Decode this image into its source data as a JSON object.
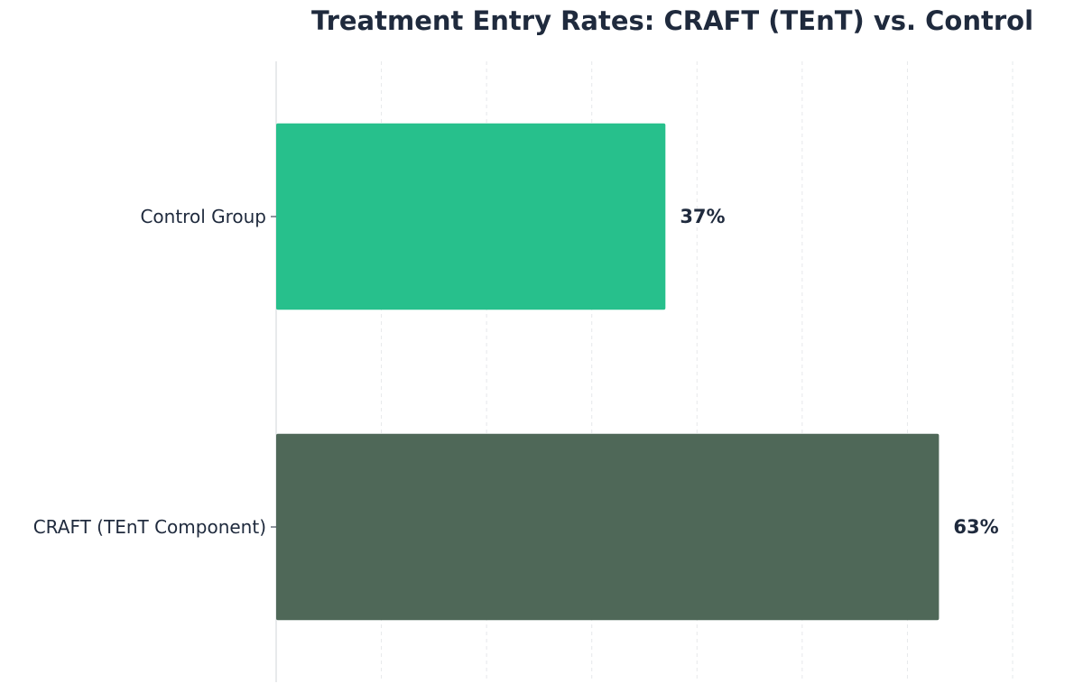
{
  "chart_data": {
    "type": "bar",
    "orientation": "horizontal",
    "title": "Treatment Entry Rates: CRAFT (TEnT) vs. Control",
    "xlabel": "",
    "ylabel": "",
    "xlim": [
      0,
      70
    ],
    "grid": true,
    "categories": [
      "Control Group",
      "CRAFT (TEnT Component)"
    ],
    "values": [
      37,
      63
    ],
    "value_labels": [
      "37%",
      "63%"
    ],
    "colors": [
      "#27c08c",
      "#4f6858"
    ],
    "text_color": "#1f2a3d"
  }
}
